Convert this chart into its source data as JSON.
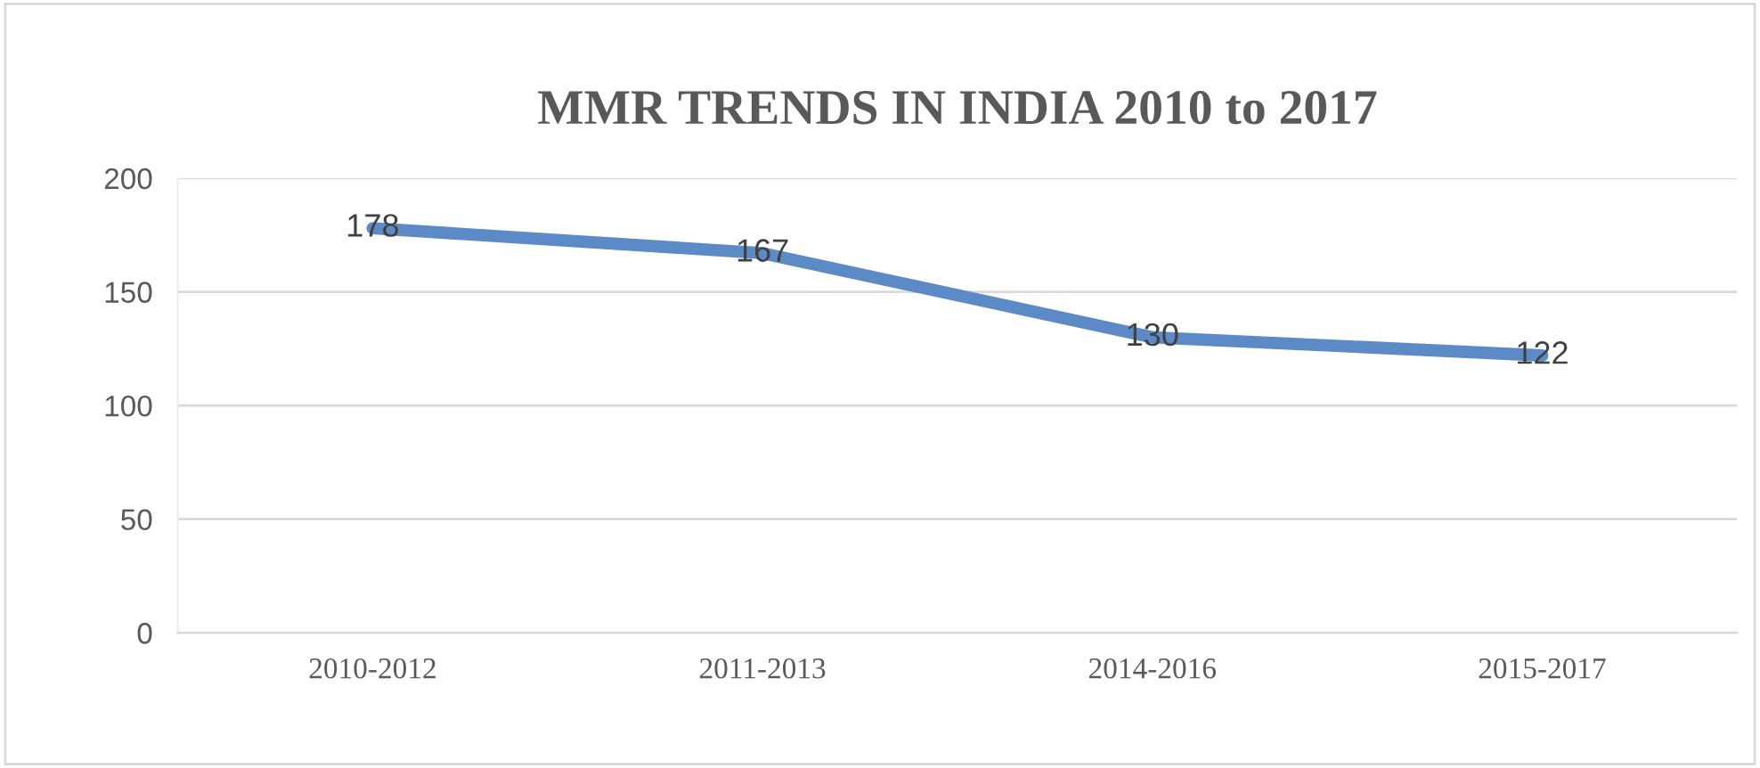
{
  "chart_data": {
    "type": "line",
    "title": "MMR TRENDS IN INDIA 2010 to 2017",
    "categories": [
      "2010-2012",
      "2011-2013",
      "2014-2016",
      "2015-2017"
    ],
    "series": [
      {
        "color": "#5b8ac6",
        "values": [
          178,
          167,
          130,
          122
        ]
      }
    ],
    "ylim": [
      0,
      200
    ],
    "yticks": [
      0,
      50,
      100,
      150,
      200
    ],
    "grid": "y",
    "data_labels": true,
    "marker": "none",
    "line_style": "solid"
  }
}
